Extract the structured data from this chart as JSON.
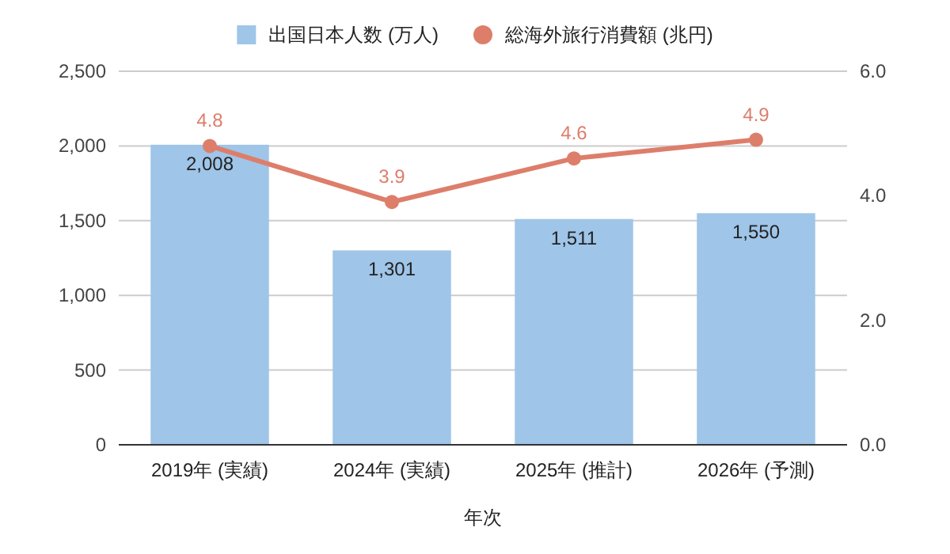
{
  "chart_data": {
    "type": "bar",
    "xlabel": "年次",
    "categories": [
      "2019年 (実績)",
      "2024年 (実績)",
      "2025年 (推計)",
      "2026年 (予測)"
    ],
    "series": [
      {
        "name": "出国日本人数 (万人)",
        "color": "#9fc5e8",
        "values": [
          2008,
          1301,
          1511,
          1550
        ],
        "value_labels": [
          "2,008",
          "1,301",
          "1,511",
          "1,550"
        ]
      },
      {
        "name": "総海外旅行消費額 (兆円)",
        "type": "line",
        "axis": "y2",
        "color": "#dd7e6b",
        "values": [
          4.8,
          3.9,
          4.6,
          4.9
        ],
        "value_labels": [
          "4.8",
          "3.9",
          "4.6",
          "4.9"
        ]
      }
    ],
    "ylim": [
      0,
      2500
    ],
    "yticks": [
      {
        "value": 0,
        "label": "0"
      },
      {
        "value": 500,
        "label": "500"
      },
      {
        "value": 1000,
        "label": "1,000"
      },
      {
        "value": 1500,
        "label": "1,500"
      },
      {
        "value": 2000,
        "label": "2,000"
      },
      {
        "value": 2500,
        "label": "2,500"
      }
    ],
    "y2lim": [
      0,
      6
    ],
    "y2ticks": [
      {
        "value": 0,
        "label": "0.0"
      },
      {
        "value": 2,
        "label": "2.0"
      },
      {
        "value": 4,
        "label": "4.0"
      },
      {
        "value": 6,
        "label": "6.0"
      }
    ],
    "grid": "y",
    "legend": "top",
    "marker": "circle"
  }
}
